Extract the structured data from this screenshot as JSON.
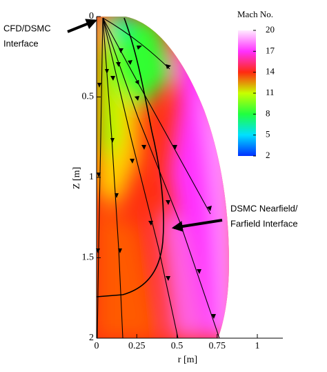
{
  "chart_data": {
    "type": "contour",
    "xlabel": "r [m]",
    "ylabel": "Z [m]",
    "xlim": [
      0,
      1.16
    ],
    "ylim": [
      0,
      2
    ],
    "y_inverted": true,
    "xticks": [
      0,
      0.25,
      0.5,
      0.75,
      1
    ],
    "yticks": [
      0,
      0.5,
      1,
      1.5,
      2
    ],
    "colorbar": {
      "title": "Mach No.",
      "lim": [
        2,
        20
      ],
      "ticks": [
        2,
        5,
        8,
        11,
        14,
        17,
        20
      ],
      "colormap": [
        "#0030ff",
        "#00e0ff",
        "#20ff40",
        "#c8ff00",
        "#ff2a10",
        "#ff30ff",
        "#ffeaff"
      ]
    },
    "annotations": [
      {
        "lines": [
          "CFD/DSMC",
          "Interface"
        ]
      },
      {
        "lines": [
          "DSMC Nearfield/",
          "Farfield Interface"
        ]
      }
    ]
  }
}
